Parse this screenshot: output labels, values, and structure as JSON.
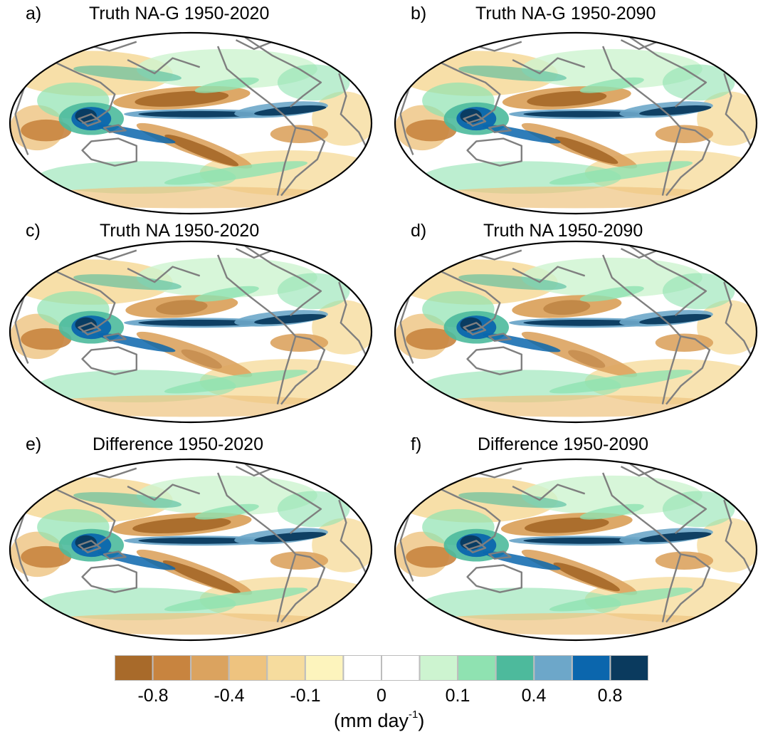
{
  "panels": [
    {
      "id": "a",
      "letter": "a)",
      "title": "Truth NA-G 1950-2020",
      "pattern": 1.0
    },
    {
      "id": "b",
      "letter": "b)",
      "title": "Truth NA-G 1950-2090",
      "pattern": 0.85
    },
    {
      "id": "c",
      "letter": "c)",
      "title": "Truth NA 1950-2020",
      "pattern": 0.55
    },
    {
      "id": "d",
      "letter": "d)",
      "title": "Truth NA 1950-2090",
      "pattern": 0.5
    },
    {
      "id": "e",
      "letter": "e)",
      "title": "Difference 1950-2020",
      "pattern": 1.05
    },
    {
      "id": "f",
      "letter": "f)",
      "title": "Difference 1950-2090",
      "pattern": 0.9
    }
  ],
  "colorbar": {
    "colors": [
      "#a86a2a",
      "#c8843f",
      "#dba35f",
      "#eec37f",
      "#f6dc9e",
      "#fdf4bd",
      "#ffffff",
      "#ffffff",
      "#cdf4d0",
      "#8fe2b1",
      "#4dba9c",
      "#6da7c9",
      "#0b66ad",
      "#0a3a5e"
    ],
    "tick_labels": [
      "-0.8",
      "-0.4",
      "-0.1",
      "0",
      "0.1",
      "0.4",
      "0.8"
    ],
    "units_main": "(mm day",
    "units_sup": "-1",
    "units_close": ")"
  },
  "colors": {
    "coastline": "#7f7f7f",
    "map_border": "#000000"
  }
}
